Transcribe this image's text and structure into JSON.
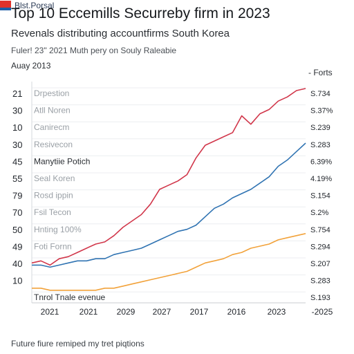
{
  "header": {
    "title": "Top 10 Eccemills Securreby firm in 2023",
    "subtitle": "Revenals distributing accountfirms South Korea",
    "note": "Fuler! 23\" 2021 Muth pery on Souly Raleabie",
    "date": "Auay 2013",
    "legend_right": "- Forts"
  },
  "footer": {
    "text": "Future fiure remiped my tret piqtions",
    "brand": "Blst.Porsal"
  },
  "chart_data": {
    "type": "line",
    "title": "Top 10 Eccemills Securreby firm in 2023",
    "subtitle": "Revenals distributing accountfirms South Korea",
    "grid": "horizontal",
    "x_tick_labels": [
      "2021",
      "2021",
      "2029",
      "2027",
      "2017",
      "2016",
      "2023",
      "-2025"
    ],
    "row_labels": [
      "Drpestion",
      "Atll Noren",
      "Canirecm",
      "Resivecon",
      "Manytiie Potich",
      "Seal Koren",
      "Rosd ippin",
      "Fsil Tecon",
      "Hnting 100%",
      "Foti Fornn",
      "",
      "",
      "Tnrol Tnale evenue"
    ],
    "left_numbers": [
      "21",
      "30",
      "10",
      "30",
      "45",
      "55",
      "79",
      "70",
      "50",
      "49",
      "40",
      "10"
    ],
    "right_values": [
      "S.734",
      "S.37%",
      "S.239",
      "S.283",
      "6.39%",
      "4.19%",
      "S.154",
      "S.2%",
      "S.754",
      "S.294",
      "S.207",
      "S.283",
      "S.193"
    ],
    "ylim": [
      0,
      100
    ],
    "series": [
      {
        "color": "#d1364a",
        "values": [
          17,
          18,
          16,
          19,
          20,
          22,
          24,
          26,
          27,
          30,
          34,
          37,
          40,
          45,
          52,
          54,
          56,
          59,
          67,
          73,
          75,
          77,
          79,
          87,
          83,
          88,
          90,
          94,
          96,
          99,
          100
        ]
      },
      {
        "color": "#2f73b2",
        "values": [
          16,
          16,
          15,
          16,
          17,
          18,
          18,
          19,
          19,
          21,
          22,
          23,
          24,
          26,
          28,
          30,
          32,
          33,
          35,
          39,
          43,
          45,
          48,
          50,
          52,
          55,
          58,
          63,
          66,
          70,
          74
        ]
      },
      {
        "color": "#f2a23a",
        "values": [
          5,
          5,
          4,
          4,
          4,
          4,
          4,
          4,
          5,
          5,
          6,
          7,
          8,
          9,
          10,
          11,
          12,
          13,
          15,
          17,
          18,
          19,
          21,
          22,
          24,
          25,
          26,
          28,
          29,
          30,
          31
        ]
      }
    ]
  }
}
